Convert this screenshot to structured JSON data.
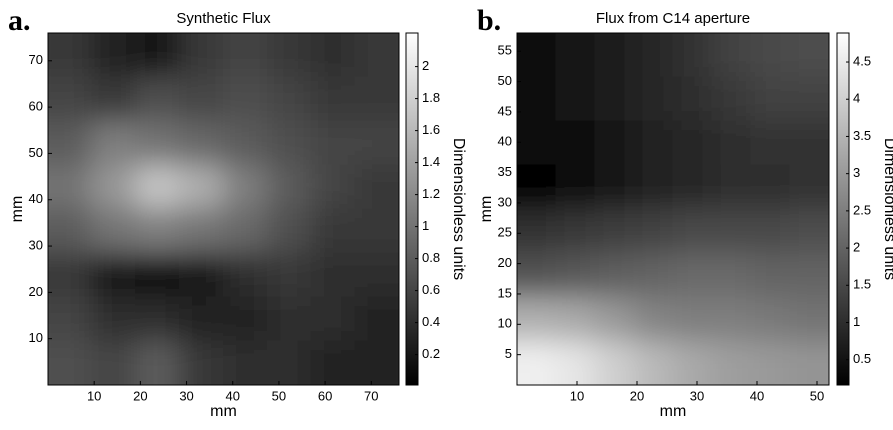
{
  "chart_data": [
    {
      "type": "heatmap",
      "panel_label": "a.",
      "title": "Synthetic Flux",
      "xlabel": "mm",
      "ylabel": "mm",
      "xlim": [
        0,
        76
      ],
      "ylim": [
        0,
        76
      ],
      "xticks": [
        10,
        20,
        30,
        40,
        50,
        60,
        70
      ],
      "yticks": [
        10,
        20,
        30,
        40,
        50,
        60,
        70
      ],
      "z": [
        [
          0.5,
          0.3,
          0.2,
          0.5,
          0.6,
          0.5,
          0.4,
          0.5
        ],
        [
          0.6,
          0.5,
          0.7,
          0.6,
          0.7,
          0.6,
          0.5,
          0.5
        ],
        [
          0.8,
          1.1,
          1.0,
          0.9,
          0.8,
          0.7,
          0.6,
          0.6
        ],
        [
          1.0,
          1.3,
          1.7,
          1.5,
          1.1,
          0.8,
          0.6,
          0.5
        ],
        [
          0.8,
          1.0,
          1.1,
          1.0,
          0.9,
          0.7,
          0.5,
          0.5
        ],
        [
          0.5,
          0.2,
          0.1,
          0.2,
          0.4,
          0.5,
          0.4,
          0.4
        ],
        [
          0.6,
          0.4,
          0.4,
          0.3,
          0.3,
          0.4,
          0.4,
          0.3
        ],
        [
          0.7,
          0.6,
          0.8,
          0.5,
          0.4,
          0.4,
          0.3,
          0.3
        ]
      ],
      "colorbar": {
        "label": "Dimensionless units",
        "clim": [
          0.01,
          2.21
        ],
        "ticks": [
          0.2,
          0.4,
          0.6,
          0.8,
          1,
          1.2,
          1.4,
          1.6,
          1.8,
          2
        ]
      }
    },
    {
      "type": "heatmap",
      "panel_label": "b.",
      "title": "Flux from C14 aperture",
      "xlabel": "mm",
      "ylabel": "mm",
      "xlim": [
        0,
        52
      ],
      "ylim": [
        0,
        58
      ],
      "xticks": [
        10,
        20,
        30,
        40,
        50
      ],
      "yticks": [
        5,
        10,
        15,
        20,
        25,
        30,
        35,
        40,
        45,
        50,
        55
      ],
      "z": [
        [
          0.4,
          0.5,
          0.7,
          0.9,
          1.1,
          1.4,
          1.5,
          1.6
        ],
        [
          0.3,
          0.5,
          0.7,
          0.9,
          1.0,
          1.2,
          1.4,
          1.4
        ],
        [
          0.3,
          0.4,
          0.6,
          0.8,
          0.9,
          1.0,
          1.1,
          1.1
        ],
        [
          0.2,
          0.3,
          0.6,
          0.8,
          0.9,
          1.0,
          1.0,
          1.1
        ],
        [
          1.1,
          1.2,
          1.3,
          1.4,
          1.5,
          1.5,
          1.5,
          1.6
        ],
        [
          1.7,
          1.8,
          1.9,
          2.0,
          2.1,
          2.1,
          2.0,
          2.0
        ],
        [
          3.4,
          3.3,
          3.0,
          2.6,
          2.5,
          2.5,
          2.4,
          2.3
        ],
        [
          4.6,
          4.4,
          4.0,
          3.6,
          3.3,
          3.1,
          3.0,
          2.9
        ]
      ],
      "colorbar": {
        "label": "Dimensionless units",
        "clim": [
          0.16,
          4.89
        ],
        "ticks": [
          0.5,
          1,
          1.5,
          2,
          2.5,
          3,
          3.5,
          4,
          4.5
        ]
      }
    }
  ]
}
